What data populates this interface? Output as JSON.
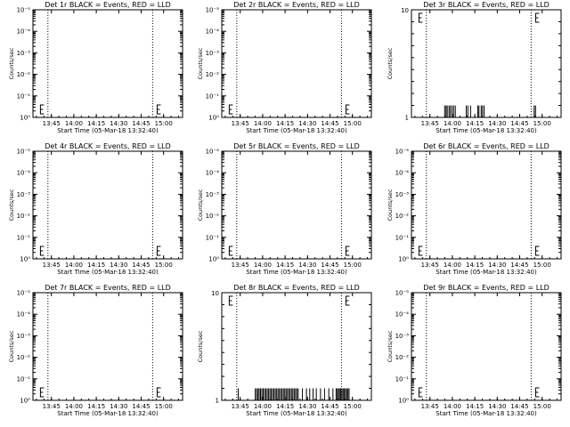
{
  "page": {
    "background": "#ffffff",
    "axis_color": "#000000",
    "events_color": "#000000",
    "lld_color": "#ff0000"
  },
  "chart_data": [
    {
      "type": "line",
      "title": "Det 1r BLACK = Events, RED = LLD",
      "xlabel": "Start Time (05-Mar-18 13:32:40)",
      "ylabel": "Counts/sec",
      "yscale": "log",
      "ylim_exp": [
        0,
        5
      ],
      "ytick_labels": [
        "10⁰",
        "10⁻¹",
        "10⁻²",
        "10⁻³",
        "10⁻⁴",
        "10⁻⁵"
      ],
      "x_ticks": [
        "13:45",
        "14:00",
        "14:15",
        "14:30",
        "14:45",
        "15:00"
      ],
      "xlim_minutes": [
        0,
        100
      ],
      "tick_minutes": [
        12.33,
        27.33,
        42.33,
        57.33,
        72.33,
        87.33
      ],
      "dotted_minutes": [
        10,
        80
      ],
      "E_markers": [
        5,
        83
      ],
      "event_spikes": []
    },
    {
      "type": "line",
      "title": "Det 2r BLACK = Events, RED = LLD",
      "xlabel": "Start Time (05-Mar-18 13:32:40)",
      "ylabel": "Counts/sec",
      "yscale": "log",
      "ylim_exp": [
        0,
        5
      ],
      "ytick_labels": [
        "10⁰",
        "10⁻¹",
        "10⁻²",
        "10⁻³",
        "10⁻⁴",
        "10⁻⁵"
      ],
      "x_ticks": [
        "13:45",
        "14:00",
        "14:15",
        "14:30",
        "14:45",
        "15:00"
      ],
      "xlim_minutes": [
        0,
        100
      ],
      "tick_minutes": [
        12.33,
        27.33,
        42.33,
        57.33,
        72.33,
        87.33
      ],
      "dotted_minutes": [
        10,
        80
      ],
      "E_markers": [
        5,
        83
      ],
      "event_spikes": []
    },
    {
      "type": "line",
      "title": "Det 3r BLACK = Events, RED = LLD",
      "xlabel": "Start Time (05-Mar-18 13:32:40)",
      "ylabel": "Counts/sec",
      "yscale": "linear",
      "ytick_labels": [
        "1",
        "10"
      ],
      "x_ticks": [
        "13:45",
        "14:00",
        "14:15",
        "14:30",
        "14:45",
        "15:00"
      ],
      "xlim_minutes": [
        0,
        100
      ],
      "tick_minutes": [
        12.33,
        27.33,
        42.33,
        57.33,
        72.33,
        87.33
      ],
      "dotted_minutes": [
        10,
        80
      ],
      "E_markers": [
        5,
        83
      ],
      "event_spikes": [
        22.2,
        23.1,
        23.9,
        25.1,
        26.0,
        27.1,
        28.2,
        29.3,
        36.6,
        37.7,
        39.5,
        44.3,
        45.1,
        46.6,
        47.5,
        48.6,
        82.0,
        82.9
      ]
    },
    {
      "type": "line",
      "title": "Det 4r BLACK = Events, RED = LLD",
      "xlabel": "Start Time (05-Mar-18 13:32:40)",
      "ylabel": "Counts/sec",
      "yscale": "log",
      "ylim_exp": [
        0,
        5
      ],
      "ytick_labels": [
        "10⁰",
        "10⁻¹",
        "10⁻²",
        "10⁻³",
        "10⁻⁴",
        "10⁻⁵"
      ],
      "x_ticks": [
        "13:45",
        "14:00",
        "14:15",
        "14:30",
        "14:45",
        "15:00"
      ],
      "xlim_minutes": [
        0,
        100
      ],
      "tick_minutes": [
        12.33,
        27.33,
        42.33,
        57.33,
        72.33,
        87.33
      ],
      "dotted_minutes": [
        10,
        80
      ],
      "E_markers": [
        5,
        83
      ],
      "event_spikes": []
    },
    {
      "type": "line",
      "title": "Det 5r BLACK = Events, RED = LLD",
      "xlabel": "Start Time (05-Mar-18 13:32:40)",
      "ylabel": "Counts/sec",
      "yscale": "log",
      "ylim_exp": [
        0,
        5
      ],
      "ytick_labels": [
        "10⁰",
        "10⁻¹",
        "10⁻²",
        "10⁻³",
        "10⁻⁴",
        "10⁻⁵"
      ],
      "x_ticks": [
        "13:45",
        "14:00",
        "14:15",
        "14:30",
        "14:45",
        "15:00"
      ],
      "xlim_minutes": [
        0,
        100
      ],
      "tick_minutes": [
        12.33,
        27.33,
        42.33,
        57.33,
        72.33,
        87.33
      ],
      "dotted_minutes": [
        10,
        80
      ],
      "E_markers": [
        5,
        83
      ],
      "event_spikes": []
    },
    {
      "type": "line",
      "title": "Det 6r BLACK = Events, RED = LLD",
      "xlabel": "Start Time (05-Mar-18 13:32:40)",
      "ylabel": "Counts/sec",
      "yscale": "log",
      "ylim_exp": [
        0,
        5
      ],
      "ytick_labels": [
        "10⁰",
        "10⁻¹",
        "10⁻²",
        "10⁻³",
        "10⁻⁴",
        "10⁻⁵"
      ],
      "x_ticks": [
        "13:45",
        "14:00",
        "14:15",
        "14:30",
        "14:45",
        "15:00"
      ],
      "xlim_minutes": [
        0,
        100
      ],
      "tick_minutes": [
        12.33,
        27.33,
        42.33,
        57.33,
        72.33,
        87.33
      ],
      "dotted_minutes": [
        10,
        80
      ],
      "E_markers": [
        5,
        83
      ],
      "event_spikes": []
    },
    {
      "type": "line",
      "title": "Det 7r BLACK = Events, RED = LLD",
      "xlabel": "Start Time (05-Mar-18 13:32:40)",
      "ylabel": "Counts/sec",
      "yscale": "log",
      "ylim_exp": [
        0,
        5
      ],
      "ytick_labels": [
        "10⁰",
        "10⁻¹",
        "10⁻²",
        "10⁻³",
        "10⁻⁴",
        "10⁻⁵"
      ],
      "x_ticks": [
        "13:45",
        "14:00",
        "14:15",
        "14:30",
        "14:45",
        "15:00"
      ],
      "xlim_minutes": [
        0,
        100
      ],
      "tick_minutes": [
        12.33,
        27.33,
        42.33,
        57.33,
        72.33,
        87.33
      ],
      "dotted_minutes": [
        10,
        80
      ],
      "E_markers": [
        5,
        83
      ],
      "event_spikes": []
    },
    {
      "type": "line",
      "title": "Det 8r BLACK = Events, RED = LLD",
      "xlabel": "Start Time (05-Mar-18 13:32:40)",
      "ylabel": "Counts/sec",
      "yscale": "linear",
      "ytick_labels": [
        "1",
        "10"
      ],
      "x_ticks": [
        "13:45",
        "14:00",
        "14:15",
        "14:30",
        "14:45",
        "15:00"
      ],
      "xlim_minutes": [
        0,
        100
      ],
      "tick_minutes": [
        12.33,
        27.33,
        42.33,
        57.33,
        72.33,
        87.33
      ],
      "dotted_minutes": [
        10,
        80
      ],
      "E_markers": [
        5,
        83
      ],
      "event_spikes": [
        11.0,
        22.4,
        23.3,
        24.2,
        25.0,
        25.9,
        26.8,
        27.7,
        28.6,
        29.5,
        30.4,
        31.3,
        32.2,
        33.1,
        34.0,
        34.9,
        35.8,
        36.7,
        37.6,
        38.5,
        39.4,
        40.3,
        41.2,
        42.1,
        43.0,
        43.9,
        44.8,
        45.7,
        46.6,
        47.5,
        48.4,
        49.3,
        50.2,
        51.1,
        53.9,
        56.6,
        58.8,
        61.0,
        63.2,
        66.0,
        68.7,
        71.5,
        74.3,
        76.4,
        77.2,
        78.0,
        78.7,
        79.5,
        80.3,
        81.1,
        81.9,
        82.7,
        83.5,
        84.3,
        85.1
      ]
    },
    {
      "type": "line",
      "title": "Det 9r BLACK = Events, RED = LLD",
      "xlabel": "Start Time (05-Mar-18 13:32:40)",
      "ylabel": "Counts/sec",
      "yscale": "log",
      "ylim_exp": [
        0,
        5
      ],
      "ytick_labels": [
        "10⁰",
        "10⁻¹",
        "10⁻²",
        "10⁻³",
        "10⁻⁴",
        "10⁻⁵"
      ],
      "x_ticks": [
        "13:45",
        "14:00",
        "14:15",
        "14:30",
        "14:45",
        "15:00"
      ],
      "xlim_minutes": [
        0,
        100
      ],
      "tick_minutes": [
        12.33,
        27.33,
        42.33,
        57.33,
        72.33,
        87.33
      ],
      "dotted_minutes": [
        10,
        80
      ],
      "E_markers": [
        5,
        83
      ],
      "event_spikes": []
    }
  ]
}
